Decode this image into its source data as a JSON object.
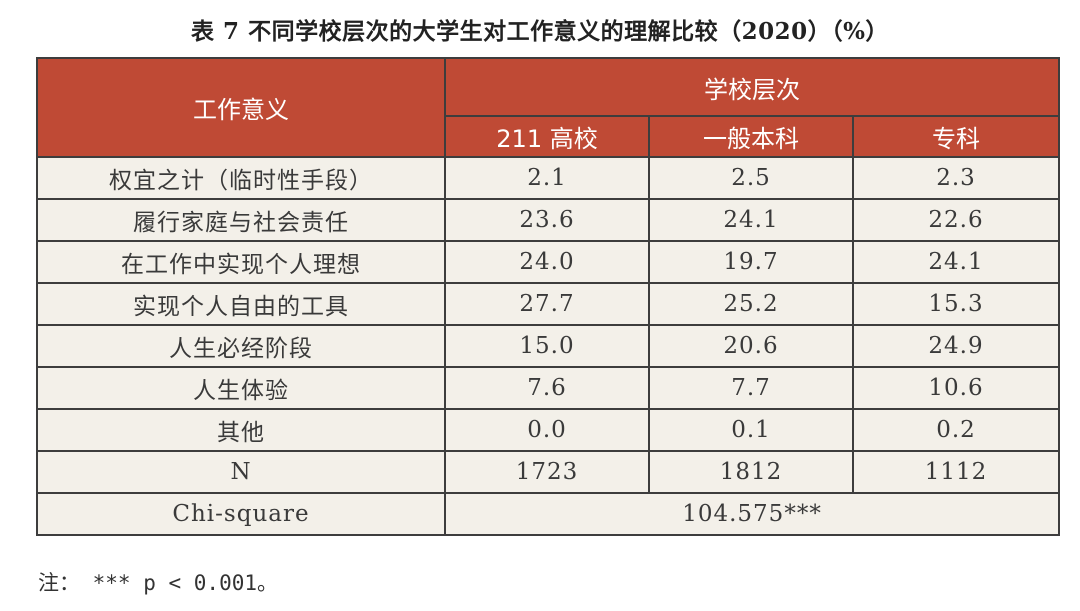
{
  "title": "表 7  不同学校层次的大学生对工作意义的理解比较（2020）（%）",
  "header": {
    "row_label": "工作意义",
    "group_label": "学校层次",
    "columns": [
      "211 高校",
      "一般本科",
      "专科"
    ]
  },
  "rows": [
    {
      "label": "权宜之计（临时性手段）",
      "values": [
        "2.1",
        "2.5",
        "2.3"
      ]
    },
    {
      "label": "履行家庭与社会责任",
      "values": [
        "23.6",
        "24.1",
        "22.6"
      ]
    },
    {
      "label": "在工作中实现个人理想",
      "values": [
        "24.0",
        "19.7",
        "24.1"
      ]
    },
    {
      "label": "实现个人自由的工具",
      "values": [
        "27.7",
        "25.2",
        "15.3"
      ]
    },
    {
      "label": "人生必经阶段",
      "values": [
        "15.0",
        "20.6",
        "24.9"
      ]
    },
    {
      "label": "人生体验",
      "values": [
        "7.6",
        "7.7",
        "10.6"
      ]
    },
    {
      "label": "其他",
      "values": [
        "0.0",
        "0.1",
        "0.2"
      ]
    },
    {
      "label": "N",
      "values": [
        "1723",
        "1812",
        "1112"
      ]
    }
  ],
  "chi_square": {
    "label": "Chi-square",
    "value": "104.575***"
  },
  "note": "注：  *** p < 0.001。",
  "colors": {
    "header_bg": "#bf4a35",
    "cell_bg": "#f3f0e9",
    "border": "#3d3d3d"
  }
}
